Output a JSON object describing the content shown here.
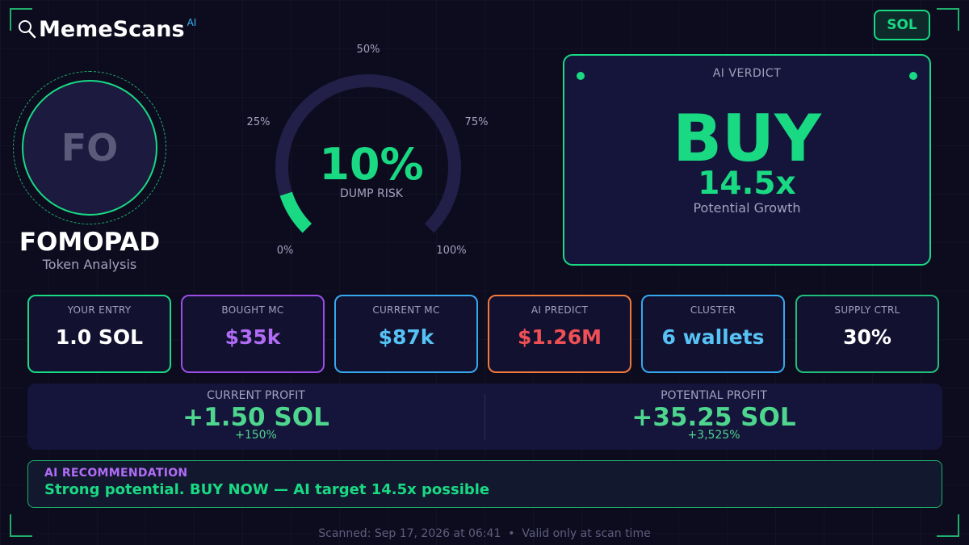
{
  "brand": {
    "name": "MemeScans",
    "sup": "AI",
    "icon": "search-icon"
  },
  "chain": {
    "label": "SOL"
  },
  "token": {
    "initials": "FO",
    "name": "FOMOPAD",
    "subtitle": "Token Analysis"
  },
  "gauge": {
    "value": "10%",
    "label": "DUMP RISK",
    "fraction": 0.1,
    "ticks": [
      "0%",
      "25%",
      "50%",
      "75%",
      "100%"
    ],
    "track_color": "#221f48",
    "fill_color": "#19d983"
  },
  "verdict": {
    "label": "AI VERDICT",
    "action": "BUY",
    "multiplier": "14.5x",
    "subtitle": "Potential Growth"
  },
  "stats": [
    {
      "label": "YOUR ENTRY",
      "value": "1.0 SOL",
      "border": "#19d983",
      "color": "#ffffff"
    },
    {
      "label": "BOUGHT MC",
      "value": "$35k",
      "border": "#9b4de8",
      "color": "#b16cf6"
    },
    {
      "label": "CURRENT MC",
      "value": "$87k",
      "border": "#36a8ee",
      "color": "#56c2f5"
    },
    {
      "label": "AI PREDICT",
      "value": "$1.26M",
      "border": "#f1793a",
      "color": "#f04f55"
    },
    {
      "label": "CLUSTER",
      "value": "6 wallets",
      "border": "#36a8ee",
      "color": "#56c2f5"
    },
    {
      "label": "SUPPLY CTRL",
      "value": "30%",
      "border": "#1fbf7a",
      "color": "#ffffff"
    }
  ],
  "profit": {
    "current": {
      "label": "CURRENT PROFIT",
      "value": "+1.50 SOL",
      "pct": "+150%"
    },
    "potential": {
      "label": "POTENTIAL PROFIT",
      "value": "+35.25 SOL",
      "pct": "+3,525%"
    }
  },
  "recommendation": {
    "title": "AI RECOMMENDATION",
    "text": "Strong potential. BUY NOW — AI target 14.5x possible"
  },
  "footer": {
    "text": "Scanned: Sep 17, 2026 at 06:41  •  Valid only at scan time"
  }
}
